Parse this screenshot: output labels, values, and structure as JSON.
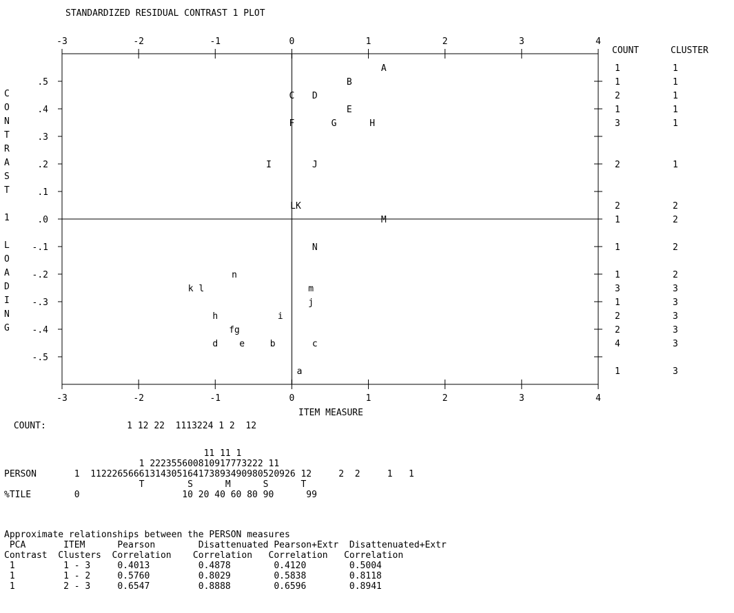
{
  "chart_data": {
    "type": "scatter",
    "title": "STANDARDIZED RESIDUAL CONTRAST 1 PLOT",
    "xlabel": "ITEM MEASURE",
    "ylabel": "CONTRAST 1 LOADING",
    "ylabel_chars": [
      "C",
      "O",
      "N",
      "T",
      "R",
      "A",
      "S",
      "T",
      "",
      "1",
      "",
      "L",
      "O",
      "A",
      "D",
      "I",
      "N",
      "G"
    ],
    "xlim": [
      -3,
      4
    ],
    "ylim": [
      -0.6,
      0.6
    ],
    "x_ticks": [
      "-3",
      "-2",
      "-1",
      "0",
      "1",
      "2",
      "3",
      "4"
    ],
    "y_ticks": [
      {
        "value": 0.5,
        "label": ".5"
      },
      {
        "value": 0.4,
        "label": ".4"
      },
      {
        "value": 0.3,
        "label": ".3"
      },
      {
        "value": 0.2,
        "label": ".2"
      },
      {
        "value": 0.1,
        "label": ".1"
      },
      {
        "value": 0.0,
        "label": ".0"
      },
      {
        "value": -0.1,
        "label": "-.1"
      },
      {
        "value": -0.2,
        "label": "-.2"
      },
      {
        "value": -0.3,
        "label": "-.3"
      },
      {
        "value": -0.4,
        "label": "-.4"
      },
      {
        "value": -0.5,
        "label": "-.5"
      }
    ],
    "points": [
      {
        "label": "A",
        "x": 1.2,
        "y": 0.55
      },
      {
        "label": "B",
        "x": 0.75,
        "y": 0.5
      },
      {
        "label": "C",
        "x": 0.0,
        "y": 0.45
      },
      {
        "label": "D",
        "x": 0.3,
        "y": 0.45
      },
      {
        "label": "E",
        "x": 0.75,
        "y": 0.4
      },
      {
        "label": "F",
        "x": 0.0,
        "y": 0.35
      },
      {
        "label": "G",
        "x": 0.55,
        "y": 0.35
      },
      {
        "label": "H",
        "x": 1.05,
        "y": 0.35
      },
      {
        "label": "I",
        "x": -0.3,
        "y": 0.2
      },
      {
        "label": "J",
        "x": 0.3,
        "y": 0.2
      },
      {
        "label": "LK",
        "x": 0.05,
        "y": 0.05
      },
      {
        "label": "M",
        "x": 1.2,
        "y": 0.0
      },
      {
        "label": "N",
        "x": 0.3,
        "y": -0.1
      },
      {
        "label": "n",
        "x": -0.75,
        "y": -0.2
      },
      {
        "label": "k l",
        "x": -1.25,
        "y": -0.25
      },
      {
        "label": "m",
        "x": 0.25,
        "y": -0.25
      },
      {
        "label": "j",
        "x": 0.25,
        "y": -0.3
      },
      {
        "label": "h",
        "x": -1.0,
        "y": -0.35
      },
      {
        "label": "i",
        "x": -0.15,
        "y": -0.35
      },
      {
        "label": "fg",
        "x": -0.75,
        "y": -0.4
      },
      {
        "label": "d",
        "x": -1.0,
        "y": -0.45
      },
      {
        "label": "e",
        "x": -0.65,
        "y": -0.45
      },
      {
        "label": "b",
        "x": -0.25,
        "y": -0.45
      },
      {
        "label": "c",
        "x": 0.3,
        "y": -0.45
      },
      {
        "label": "a",
        "x": 0.1,
        "y": -0.55
      }
    ],
    "right_table": {
      "headers": [
        "COUNT",
        "CLUSTER"
      ],
      "rows": [
        {
          "y": 0.55,
          "count": "1",
          "cluster": "1"
        },
        {
          "y": 0.5,
          "count": "1",
          "cluster": "1"
        },
        {
          "y": 0.45,
          "count": "2",
          "cluster": "1"
        },
        {
          "y": 0.4,
          "count": "1",
          "cluster": "1"
        },
        {
          "y": 0.35,
          "count": "3",
          "cluster": "1"
        },
        {
          "y": 0.2,
          "count": "2",
          "cluster": "1"
        },
        {
          "y": 0.05,
          "count": "2",
          "cluster": "2"
        },
        {
          "y": 0.0,
          "count": "1",
          "cluster": "2"
        },
        {
          "y": -0.1,
          "count": "1",
          "cluster": "2"
        },
        {
          "y": -0.2,
          "count": "1",
          "cluster": "2"
        },
        {
          "y": -0.25,
          "count": "3",
          "cluster": "3"
        },
        {
          "y": -0.3,
          "count": "1",
          "cluster": "3"
        },
        {
          "y": -0.35,
          "count": "2",
          "cluster": "3"
        },
        {
          "y": -0.4,
          "count": "2",
          "cluster": "3"
        },
        {
          "y": -0.45,
          "count": "4",
          "cluster": "3"
        },
        {
          "y": -0.55,
          "count": "1",
          "cluster": "3"
        }
      ]
    }
  },
  "below": {
    "count_line": " COUNT:               1 12 22  1113224 1 2  12",
    "person_lines": [
      "                                     11 11 1",
      "                         1 222355600810917773222 11",
      "PERSON       1  11222656661314305164173893490980520926 12     2  2     1   1",
      "                         T        S      M      S      T",
      "%TILE        0                   10 20 40 60 80 90      99"
    ],
    "approx_title": "Approximate relationships between the PERSON measures",
    "approx_lines": [
      " PCA       ITEM      Pearson        Disattenuated Pearson+Extr  Disattenuated+Extr",
      "Contrast  Clusters  Correlation    Correlation   Correlation   Correlation",
      " 1         1 - 3     0.4013         0.4878        0.4120        0.5004",
      " 1         1 - 2     0.5760         0.8029        0.5838        0.8118",
      " 1         2 - 3     0.6547         0.8888        0.6596        0.8941"
    ]
  }
}
